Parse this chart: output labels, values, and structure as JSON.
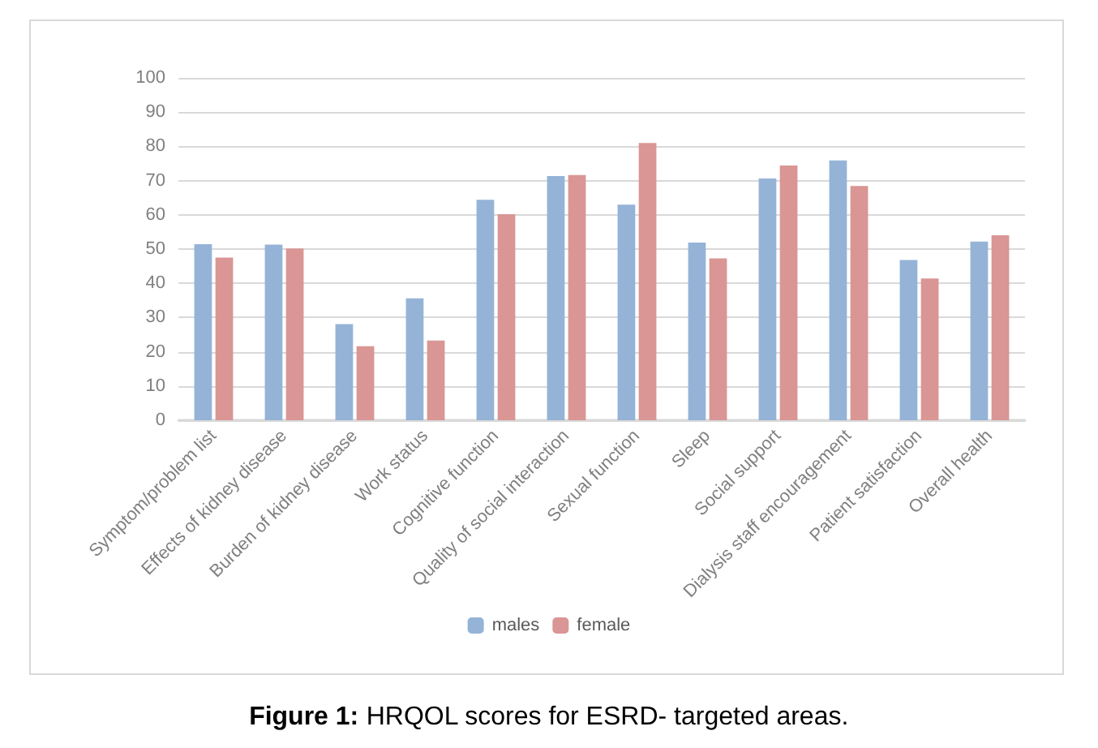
{
  "chart_data": {
    "type": "bar",
    "title": "Figure 1: HRQOL scores for ESRD- targeted areas.",
    "categories": [
      "Symptom/problem list",
      "Effects of kidney disease",
      "Burden of kidney disease",
      "Work status",
      "Cognitive function",
      "Quality of social interaction",
      "Sexual function",
      "Sleep",
      "Social support",
      "Dialysis staff encouragement",
      "Patient satisfaction",
      "Overall health"
    ],
    "series": [
      {
        "name": "males",
        "color": "#95b3d7",
        "values": [
          51.4,
          51.3,
          28.1,
          35.6,
          64.4,
          71.3,
          63,
          51.9,
          70.6,
          75.9,
          46.8,
          52.2
        ]
      },
      {
        "name": "female",
        "color": "#d99694",
        "values": [
          47.5,
          50.2,
          21.6,
          23.3,
          60.2,
          71.6,
          81,
          47.3,
          74.4,
          68.4,
          41.4,
          54
        ]
      }
    ],
    "ylim": [
      0,
      100
    ],
    "yticks": [
      0,
      10,
      20,
      30,
      40,
      50,
      60,
      70,
      80,
      90,
      100
    ],
    "grid": "y",
    "legend": "bottom"
  }
}
